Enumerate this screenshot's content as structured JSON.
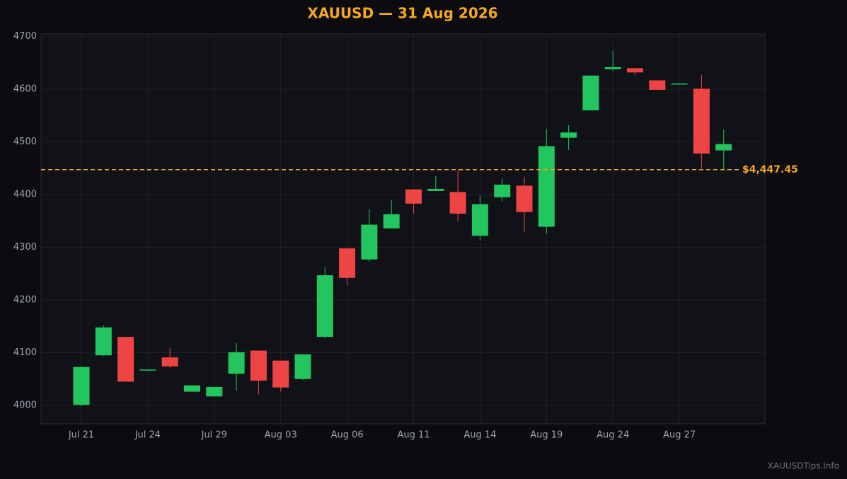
{
  "chart_data": {
    "type": "candlestick",
    "title": "XAUUSD — 31 Aug 2026",
    "categories": [
      "Jul 21",
      null,
      null,
      "Jul 24",
      null,
      null,
      "Jul 29",
      null,
      null,
      "Aug 03",
      null,
      null,
      "Aug 06",
      null,
      null,
      "Aug 11",
      null,
      null,
      "Aug 14",
      null,
      null,
      "Aug 19",
      null,
      null,
      "Aug 24",
      null,
      null,
      "Aug 27",
      null,
      null
    ],
    "open": [
      4001,
      4095,
      4130,
      4067,
      4091,
      4026,
      4017,
      4060,
      4104,
      4085,
      4050,
      4130,
      4298,
      4277,
      4336,
      4410,
      4407,
      4405,
      4322,
      4395,
      4417,
      4339,
      4508,
      4560,
      4638,
      4640,
      4617,
      4609,
      4601,
      4484
    ],
    "high": [
      4073,
      4152,
      4130,
      4068,
      4109,
      4038,
      4035,
      4118,
      4104,
      4085,
      4097,
      4262,
      4298,
      4373,
      4390,
      4410,
      4435,
      4446,
      4398,
      4430,
      4434,
      4525,
      4532,
      4626,
      4673,
      4640,
      4617,
      4611,
      4627,
      4523
    ],
    "low": [
      3998,
      4094,
      4045,
      4066,
      4071,
      4025,
      4016,
      4028,
      4021,
      4026,
      4048,
      4128,
      4228,
      4273,
      4336,
      4364,
      4407,
      4349,
      4313,
      4387,
      4329,
      4326,
      4485,
      4560,
      4635,
      4627,
      4599,
      4609,
      4450,
      4447
    ],
    "close": [
      4073,
      4148,
      4045,
      4068,
      4074,
      4038,
      4035,
      4101,
      4047,
      4034,
      4097,
      4247,
      4242,
      4343,
      4363,
      4383,
      4411,
      4364,
      4382,
      4419,
      4367,
      4492,
      4518,
      4626,
      4642,
      4632,
      4599,
      4611,
      4478,
      4496
    ],
    "up_color": "#22c55e",
    "down_color": "#ef4444",
    "ylim": [
      3965,
      4705
    ],
    "yticks": [
      4000,
      4100,
      4200,
      4300,
      4400,
      4500,
      4600,
      4700
    ],
    "grid": true,
    "price_line": {
      "value": 4447.45,
      "label": "$4,447.45",
      "color": "#f5a623"
    },
    "watermark": "XAUUSDTips.info"
  }
}
